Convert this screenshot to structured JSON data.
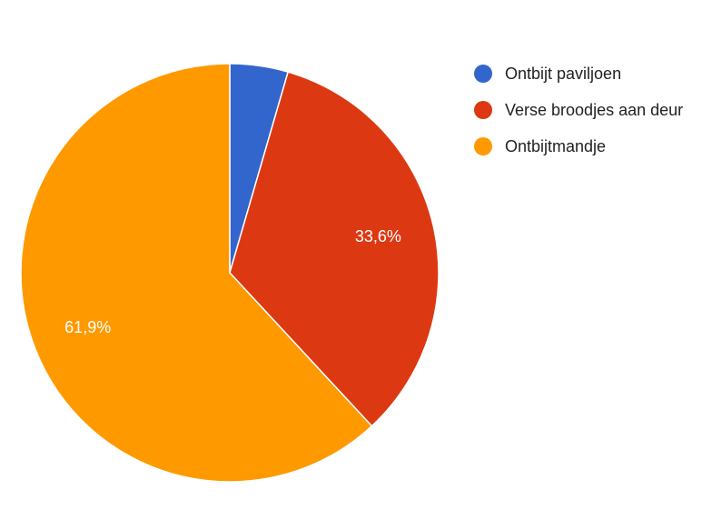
{
  "chart_data": {
    "type": "pie",
    "categories": [
      "Ontbijt paviljoen",
      "Verse broodjes aan deur",
      "Ontbijtmandje"
    ],
    "values": [
      4.5,
      33.6,
      61.9
    ],
    "value_labels": [
      null,
      "33,6%",
      "61,9%"
    ],
    "colors": [
      "#3366cc",
      "#dc3912",
      "#ff9900"
    ],
    "legend": "right"
  }
}
